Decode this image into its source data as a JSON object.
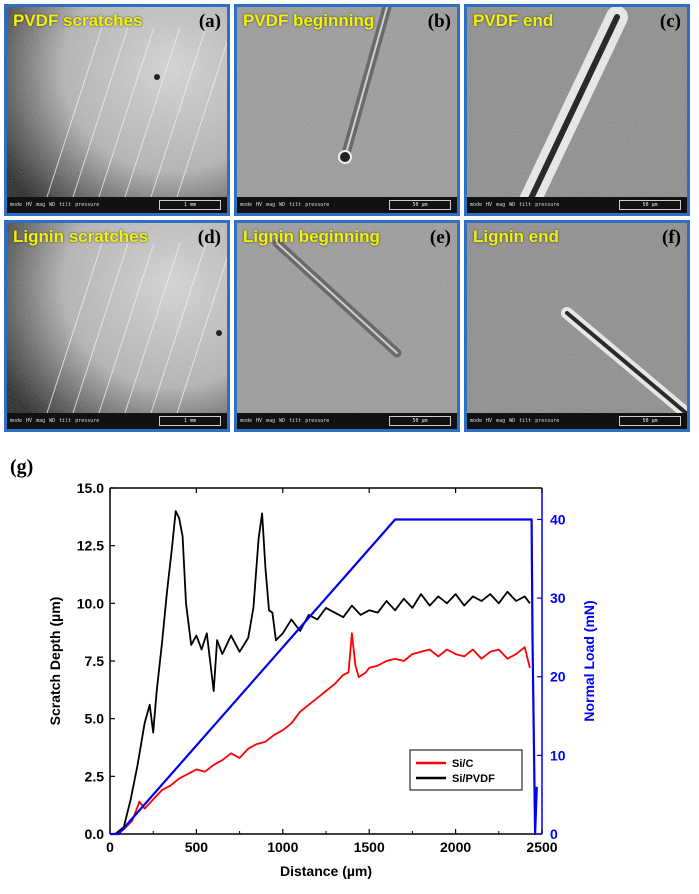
{
  "panels": [
    {
      "id": "a",
      "title": "PVDF scratches",
      "letter": "(a)",
      "scale": "1 mm",
      "style": "overview"
    },
    {
      "id": "b",
      "title": "PVDF beginning",
      "letter": "(b)",
      "scale": "50 µm",
      "style": "begin"
    },
    {
      "id": "c",
      "title": "PVDF end",
      "letter": "(c)",
      "scale": "50 µm",
      "style": "end"
    },
    {
      "id": "d",
      "title": "Lignin scratches",
      "letter": "(d)",
      "scale": "1 mm",
      "style": "overview"
    },
    {
      "id": "e",
      "title": "Lignin beginning",
      "letter": "(e)",
      "scale": "50 µm",
      "style": "begin"
    },
    {
      "id": "f",
      "title": "Lignin end",
      "letter": "(f)",
      "scale": "50 µm",
      "style": "end"
    }
  ],
  "databar_fields": [
    "mode",
    "HV",
    "mag",
    "WD",
    "tilt",
    "pressure"
  ],
  "figure_label": "(g)",
  "chart_data": {
    "type": "line",
    "xlabel": "Distance (µm)",
    "ylabel_left": "Scratch Depth (µm)",
    "ylabel_right": "Normal Load (mN)",
    "xlim": [
      0,
      2500
    ],
    "ylim_left": [
      0,
      15
    ],
    "ylim_right": [
      0,
      44
    ],
    "x_ticks": [
      0,
      500,
      1000,
      1500,
      2000,
      2500
    ],
    "y_ticks_left": [
      "0.0",
      "2.5",
      "5.0",
      "7.5",
      "10.0",
      "12.5",
      "15.0"
    ],
    "y_ticks_right": [
      0,
      10,
      20,
      30,
      40
    ],
    "legend_position": "lower-right",
    "series": [
      {
        "name": "Si/C",
        "color": "#ff0000",
        "axis": "left",
        "x": [
          30,
          80,
          130,
          170,
          200,
          250,
          300,
          350,
          400,
          450,
          500,
          550,
          600,
          650,
          700,
          750,
          800,
          850,
          900,
          950,
          1000,
          1050,
          1100,
          1150,
          1200,
          1250,
          1300,
          1350,
          1380,
          1400,
          1420,
          1440,
          1480,
          1500,
          1550,
          1600,
          1650,
          1700,
          1750,
          1800,
          1850,
          1900,
          1950,
          2000,
          2050,
          2100,
          2150,
          2200,
          2250,
          2300,
          2350,
          2400,
          2430
        ],
        "y": [
          0.0,
          0.2,
          0.6,
          1.4,
          1.1,
          1.5,
          1.9,
          2.1,
          2.4,
          2.6,
          2.8,
          2.7,
          3.0,
          3.2,
          3.5,
          3.3,
          3.7,
          3.9,
          4.0,
          4.3,
          4.5,
          4.8,
          5.3,
          5.6,
          5.9,
          6.2,
          6.5,
          6.9,
          7.0,
          8.7,
          7.3,
          6.8,
          7.0,
          7.2,
          7.3,
          7.5,
          7.6,
          7.5,
          7.8,
          7.9,
          8.0,
          7.7,
          8.0,
          7.8,
          7.7,
          8.0,
          7.6,
          7.9,
          8.0,
          7.6,
          7.8,
          8.1,
          7.2
        ]
      },
      {
        "name": "Si/PVDF",
        "color": "#000000",
        "axis": "left",
        "x": [
          30,
          80,
          120,
          160,
          200,
          230,
          250,
          270,
          300,
          330,
          360,
          380,
          400,
          420,
          440,
          470,
          500,
          530,
          560,
          600,
          620,
          650,
          700,
          750,
          800,
          830,
          860,
          880,
          900,
          920,
          940,
          960,
          1000,
          1050,
          1100,
          1150,
          1200,
          1250,
          1300,
          1350,
          1400,
          1450,
          1500,
          1550,
          1600,
          1650,
          1700,
          1750,
          1800,
          1850,
          1900,
          1950,
          2000,
          2050,
          2100,
          2150,
          2200,
          2250,
          2300,
          2350,
          2400,
          2430
        ],
        "y": [
          0.0,
          0.3,
          1.5,
          3.0,
          4.8,
          5.6,
          4.4,
          6.2,
          8.2,
          10.5,
          12.5,
          14.0,
          13.7,
          12.9,
          10.0,
          8.2,
          8.6,
          8.0,
          8.7,
          6.2,
          8.4,
          7.8,
          8.6,
          7.9,
          8.5,
          9.8,
          12.8,
          13.9,
          11.5,
          9.7,
          9.6,
          8.4,
          8.7,
          9.3,
          8.8,
          9.5,
          9.3,
          9.8,
          9.6,
          9.4,
          9.9,
          9.5,
          9.7,
          9.6,
          10.1,
          9.7,
          10.2,
          9.8,
          10.4,
          9.9,
          10.3,
          10.0,
          10.4,
          9.9,
          10.3,
          10.1,
          10.4,
          10.0,
          10.5,
          10.1,
          10.3,
          10.0
        ]
      },
      {
        "name": "Normal Load",
        "color": "#0000ee",
        "axis": "right",
        "x": [
          0,
          50,
          1650,
          2440,
          2445,
          2460,
          2470
        ],
        "y": [
          0,
          0,
          40,
          40,
          25,
          0,
          6
        ]
      }
    ]
  }
}
